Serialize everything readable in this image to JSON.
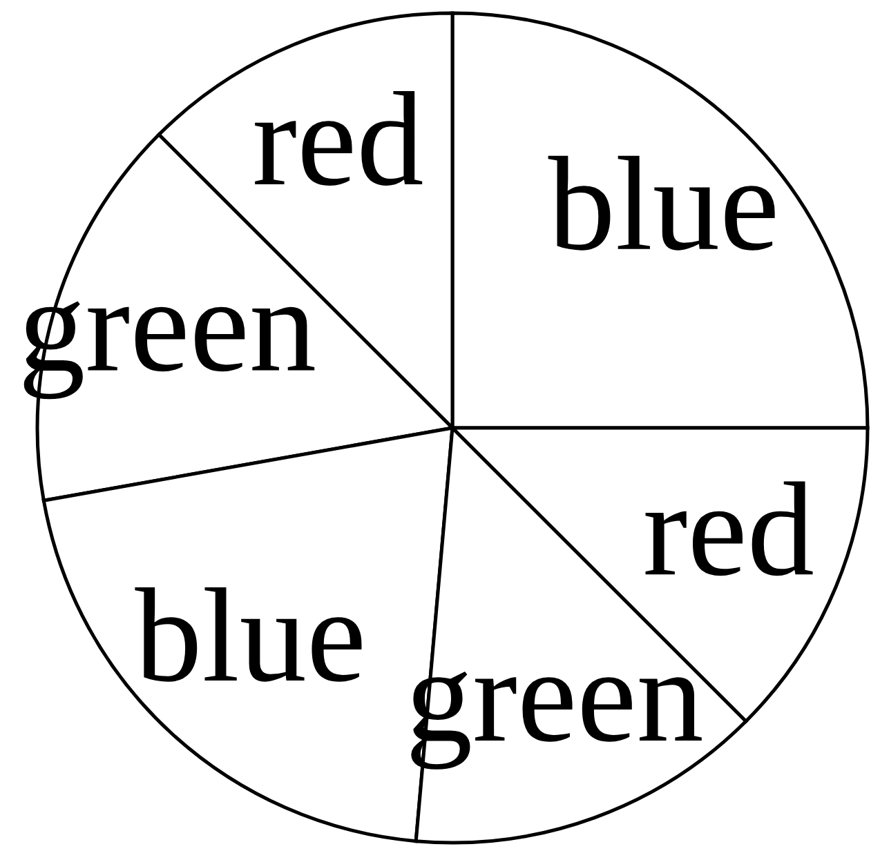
{
  "chart_data": {
    "type": "pie",
    "categories": [
      "blue",
      "red",
      "green",
      "blue",
      "green",
      "red"
    ],
    "values": [
      25,
      12.5,
      15.3,
      20.8,
      13.9,
      12.5
    ],
    "colors": [
      "#ffffff",
      "#ffffff",
      "#ffffff",
      "#ffffff",
      "#ffffff",
      "#ffffff"
    ]
  }
}
